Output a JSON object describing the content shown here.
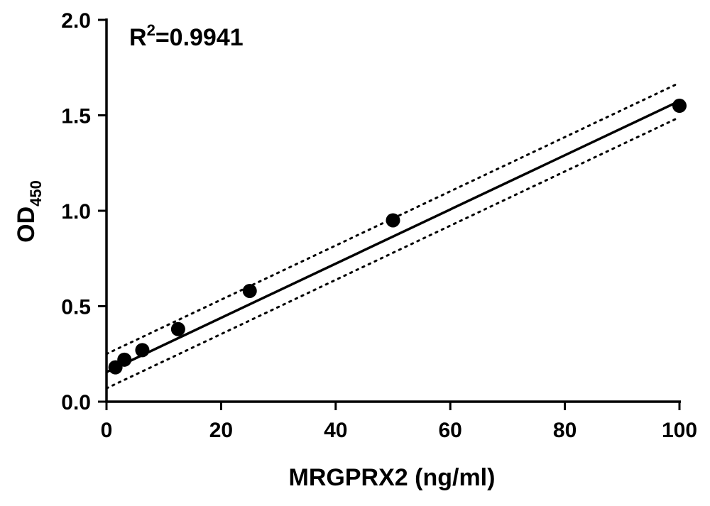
{
  "chart_data": {
    "type": "scatter",
    "xlabel": "MRGPRX2 (ng/ml)",
    "ylabel": {
      "main": "OD",
      "subscript": "450"
    },
    "annotation": {
      "prefix": "R",
      "superscript": "2",
      "suffix": "=0.9941"
    },
    "xlim": [
      0,
      100
    ],
    "ylim": [
      0,
      2.0
    ],
    "x_ticks": [
      0,
      20,
      40,
      60,
      80,
      100
    ],
    "x_tick_labels": [
      "0",
      "20",
      "40",
      "60",
      "80",
      "100"
    ],
    "y_ticks": [
      0,
      0.5,
      1.0,
      1.5,
      2.0
    ],
    "y_tick_labels": [
      "0.0",
      "0.5",
      "1.0",
      "1.5",
      "2.0"
    ],
    "grid": false,
    "series": [
      {
        "points": [
          {
            "x": 1.5625,
            "y": 0.18
          },
          {
            "x": 3.125,
            "y": 0.22
          },
          {
            "x": 6.25,
            "y": 0.27
          },
          {
            "x": 12.5,
            "y": 0.38
          },
          {
            "x": 25,
            "y": 0.58
          },
          {
            "x": 50,
            "y": 0.95
          },
          {
            "x": 100,
            "y": 1.55
          }
        ]
      }
    ],
    "fit_line": {
      "style": "solid",
      "x": [
        0,
        100
      ],
      "y": [
        0.155,
        1.575
      ]
    },
    "confidence_bands": [
      {
        "style": "dotted",
        "x": [
          0,
          100
        ],
        "y": [
          0.25,
          1.67
        ]
      },
      {
        "style": "dotted",
        "x": [
          0,
          100
        ],
        "y": [
          0.07,
          1.49
        ]
      }
    ],
    "colors": {
      "marker": "#000000",
      "line": "#000000",
      "axis": "#000000"
    }
  }
}
